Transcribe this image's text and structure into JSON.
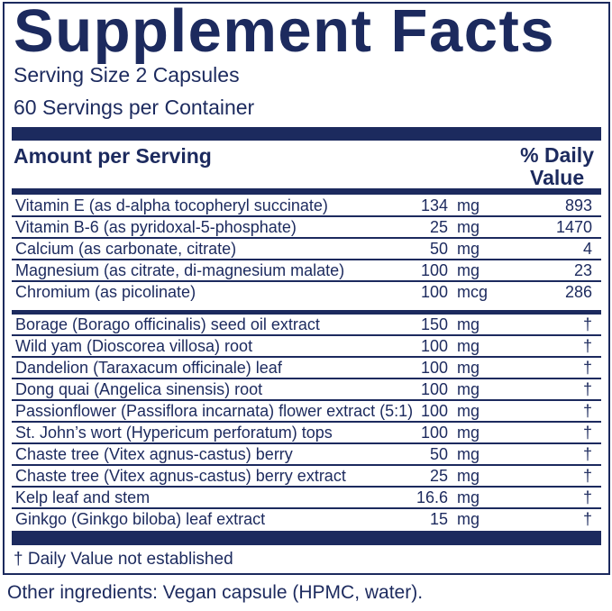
{
  "title": "Supplement Facts",
  "serving_size": "Serving Size 2 Capsules",
  "servings_per_container": "60 Servings per Container",
  "header": {
    "amount": "Amount per Serving",
    "dv_line1": "% Daily",
    "dv_line2": "Value"
  },
  "nutrients": [
    {
      "name": "Vitamin E (as d-alpha tocopheryl succinate)",
      "amount": "134",
      "unit": "mg",
      "dv": "893"
    },
    {
      "name": "Vitamin B-6 (as pyridoxal-5-phosphate)",
      "amount": "25",
      "unit": "mg",
      "dv": "1470"
    },
    {
      "name": "Calcium (as carbonate, citrate)",
      "amount": "50",
      "unit": "mg",
      "dv": "4"
    },
    {
      "name": "Magnesium (as citrate, di-magnesium malate)",
      "amount": "100",
      "unit": "mg",
      "dv": "23"
    },
    {
      "name": "Chromium (as picolinate)",
      "amount": "100",
      "unit": "mcg",
      "dv": "286"
    }
  ],
  "botanicals": [
    {
      "name": "Borage (Borago officinalis) seed oil extract",
      "amount": "150",
      "unit": "mg",
      "dv": "†"
    },
    {
      "name": "Wild yam (Dioscorea villosa) root",
      "amount": "100",
      "unit": "mg",
      "dv": "†"
    },
    {
      "name": "Dandelion (Taraxacum officinale) leaf",
      "amount": "100",
      "unit": "mg",
      "dv": "†"
    },
    {
      "name": "Dong quai (Angelica sinensis) root",
      "amount": "100",
      "unit": "mg",
      "dv": "†"
    },
    {
      "name": "Passionflower (Passiflora incarnata) flower extract (5:1)",
      "amount": "100",
      "unit": "mg",
      "dv": "†"
    },
    {
      "name": "St. John’s wort (Hypericum perforatum) tops",
      "amount": "100",
      "unit": "mg",
      "dv": "†"
    },
    {
      "name": "Chaste tree (Vitex agnus-castus) berry",
      "amount": "50",
      "unit": "mg",
      "dv": "†"
    },
    {
      "name": "Chaste tree (Vitex agnus-castus) berry extract",
      "amount": "25",
      "unit": "mg",
      "dv": "†"
    },
    {
      "name": "Kelp leaf and stem",
      "amount": "16.6",
      "unit": "mg",
      "dv": "†"
    },
    {
      "name": "Ginkgo (Ginkgo biloba) leaf extract",
      "amount": "15",
      "unit": "mg",
      "dv": "†"
    }
  ],
  "footnote": "† Daily Value not established",
  "other_ingredients": "Other ingredients: Vegan capsule (HPMC, water).",
  "colors": {
    "navy": "#1c2a5e"
  }
}
